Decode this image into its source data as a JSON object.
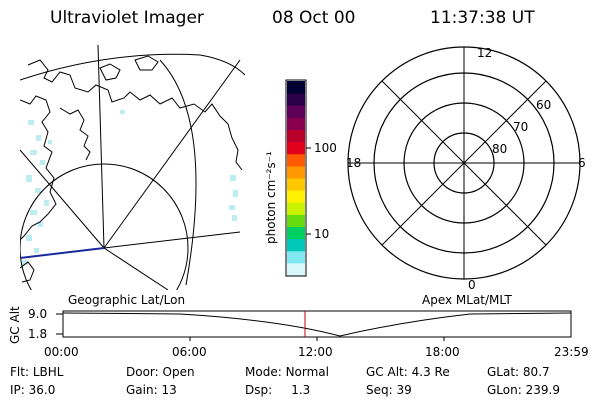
{
  "header": {
    "title": "Ultraviolet Imager",
    "date": "08 Oct 00",
    "time": "11:37:38 UT"
  },
  "colorbar": {
    "unit_label": "photon cm⁻²s⁻¹",
    "ticks": [
      "100",
      "10"
    ],
    "colors": [
      "#000033",
      "#2a0048",
      "#5c0058",
      "#8a0050",
      "#b8002a",
      "#e2001c",
      "#ff5a00",
      "#ff9800",
      "#ffc800",
      "#fff200",
      "#c8f200",
      "#66dc10",
      "#00d060",
      "#00c8b8",
      "#80e8f0",
      "#d8f8fc"
    ]
  },
  "left_map": {
    "label": "Geographic Lat/Lon"
  },
  "polar_plot": {
    "label": "Apex MLat/MLT",
    "mlt_labels": {
      "top": "12",
      "bottom": "0",
      "left": "18",
      "right": "6"
    },
    "lat_labels": [
      "60",
      "70",
      "80"
    ]
  },
  "timeline": {
    "y_label": "GC Alt",
    "y_ticks": [
      "9.0",
      "1.8"
    ],
    "x_ticks": [
      "00:00",
      "06:00",
      "12:00",
      "18:00",
      "23:59"
    ],
    "marker_color": "#cc0000"
  },
  "info": {
    "row1": [
      {
        "label": "Flt:",
        "value": "LBHL"
      },
      {
        "label": "Door:",
        "value": "Open"
      },
      {
        "label": "Mode:",
        "value": "Normal"
      },
      {
        "label": "GC Alt:",
        "value": "4.3 Re"
      },
      {
        "label": "GLat:",
        "value": "80.7"
      }
    ],
    "row2": [
      {
        "label": "IP:",
        "value": "36.0"
      },
      {
        "label": "Gain:",
        "value": "13"
      },
      {
        "label": "Dsp:",
        "value": "1.3"
      },
      {
        "label": "Seq:",
        "value": "39"
      },
      {
        "label": "GLon:",
        "value": "239.9"
      }
    ]
  }
}
